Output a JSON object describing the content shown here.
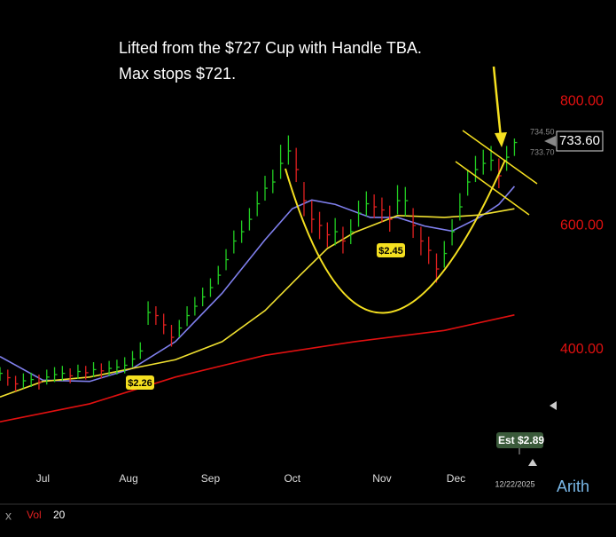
{
  "chart_data": {
    "type": "ohlc",
    "annotation_lines": [
      "Lifted from the $727 Cup with Handle TBA.",
      "Max stops $721."
    ],
    "eps_labels": [
      "$2.26",
      "$2.45",
      "Est $2.89"
    ],
    "last_price_label": "733.60",
    "price_flags": [
      "734.50",
      "733.70"
    ],
    "date_label": "12/22/2025",
    "scale_mode": "Arith",
    "footer": [
      "x",
      "Vol",
      "20"
    ],
    "xlim": [
      0,
      141
    ],
    "xticks": [
      {
        "value": 11,
        "label": "Jul"
      },
      {
        "value": 33,
        "label": "Aug"
      },
      {
        "value": 54,
        "label": "Sep"
      },
      {
        "value": 75,
        "label": "Oct"
      },
      {
        "value": 98,
        "label": "Nov"
      },
      {
        "value": 117,
        "label": "Dec"
      }
    ],
    "ylim": [
      220,
      963
    ],
    "yticks": [
      {
        "value": 400,
        "label": "400.00"
      },
      {
        "value": 600,
        "label": "600.00"
      },
      {
        "value": 800,
        "label": "800.00"
      }
    ],
    "up_color": "#22cc22",
    "down_color": "#e02020",
    "ohlc": {
      "x": [
        0,
        2,
        4,
        6,
        8,
        10,
        12,
        14,
        16,
        18,
        20,
        22,
        24,
        26,
        28,
        30,
        32,
        34,
        36,
        38,
        40,
        42,
        44,
        46,
        48,
        50,
        52,
        54,
        56,
        58,
        60,
        62,
        64,
        66,
        68,
        70,
        72,
        74,
        76,
        78,
        80,
        82,
        84,
        86,
        88,
        90,
        92,
        94,
        96,
        98,
        100,
        102,
        104,
        106,
        108,
        110,
        112,
        114,
        116,
        118,
        120,
        122,
        124,
        126,
        128,
        130,
        132
      ],
      "high": [
        372,
        368,
        358,
        362,
        363,
        360,
        368,
        372,
        374,
        370,
        376,
        374,
        380,
        378,
        382,
        384,
        388,
        398,
        412,
        478,
        470,
        458,
        440,
        448,
        470,
        485,
        500,
        515,
        535,
        562,
        592,
        608,
        628,
        655,
        680,
        690,
        730,
        745,
        725,
        670,
        640,
        622,
        605,
        612,
        598,
        610,
        640,
        655,
        650,
        645,
        632,
        665,
        662,
        628,
        598,
        582,
        555,
        575,
        610,
        652,
        690,
        712,
        722,
        728,
        708,
        728,
        740
      ],
      "low": [
        350,
        342,
        333,
        338,
        340,
        336,
        344,
        348,
        350,
        346,
        353,
        352,
        356,
        354,
        358,
        360,
        362,
        372,
        385,
        440,
        440,
        425,
        405,
        420,
        438,
        455,
        470,
        485,
        505,
        528,
        555,
        572,
        592,
        615,
        640,
        652,
        675,
        698,
        670,
        615,
        588,
        578,
        565,
        568,
        555,
        570,
        598,
        615,
        612,
        605,
        590,
        618,
        615,
        580,
        552,
        538,
        508,
        532,
        568,
        608,
        648,
        670,
        682,
        688,
        660,
        688,
        712
      ],
      "close": [
        362,
        355,
        345,
        350,
        352,
        348,
        356,
        360,
        362,
        358,
        365,
        363,
        368,
        366,
        370,
        372,
        375,
        385,
        398,
        460,
        455,
        440,
        420,
        435,
        455,
        470,
        485,
        500,
        520,
        545,
        575,
        590,
        610,
        635,
        660,
        670,
        700,
        720,
        690,
        640,
        610,
        600,
        585,
        590,
        575,
        590,
        620,
        635,
        630,
        625,
        610,
        640,
        640,
        600,
        575,
        560,
        530,
        555,
        590,
        630,
        670,
        690,
        700,
        705,
        680,
        710,
        733.6
      ]
    },
    "moving_averages": [
      {
        "color": "#8080ee",
        "x": [
          0,
          11,
          23,
          34,
          45,
          57,
          68,
          75,
          80,
          86,
          95,
          102,
          109,
          116,
          123,
          128,
          132
        ],
        "values": [
          389,
          351,
          349,
          370,
          413,
          491,
          577,
          627,
          641,
          634,
          613,
          613,
          599,
          591,
          613,
          634,
          663
        ]
      },
      {
        "color": "#f0e030",
        "x": [
          0,
          11,
          23,
          34,
          45,
          57,
          68,
          77,
          84,
          91,
          102,
          114,
          123,
          132
        ],
        "values": [
          324,
          349,
          356,
          370,
          384,
          413,
          463,
          520,
          563,
          589,
          616,
          613,
          617,
          627
        ]
      },
      {
        "color": "#e01010",
        "x": [
          0,
          23,
          45,
          68,
          91,
          114,
          132
        ],
        "values": [
          284,
          313,
          356,
          391,
          413,
          431,
          456
        ]
      }
    ]
  }
}
